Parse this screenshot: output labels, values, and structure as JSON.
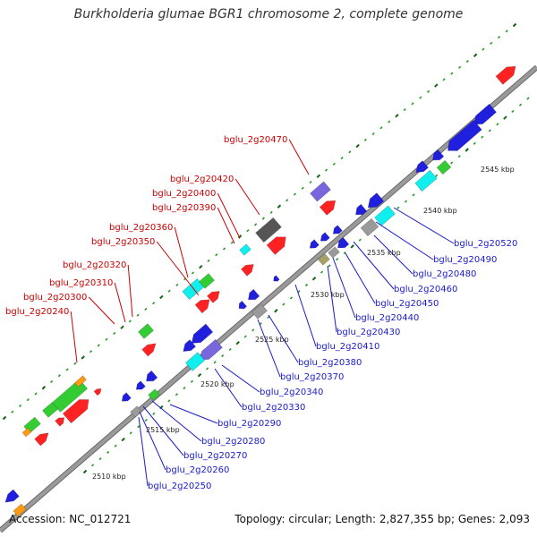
{
  "title": "Burkholderia glumae BGR1 chromosome 2, complete genome",
  "footer": {
    "accession": "Accession: NC_012721",
    "topology": "Topology: circular; Length: 2,827,355 bp; Genes: 2,093"
  },
  "colors": {
    "backbone": "#9a9a9a",
    "forward_label": "#cc0000",
    "reverse_label": "#1a1acc",
    "tick_minor": "#229922",
    "tick_major": "#116611",
    "gene_red": "#ff2222",
    "gene_blue": "#1f1fdd",
    "gene_green": "#33cc33",
    "gene_cyan": "#11eeee",
    "gene_grey": "#9a9a9a",
    "gene_purple": "#7766dd",
    "gene_darkgrey": "#555555",
    "gene_olive": "#aaa066",
    "gene_orange": "#ff9911"
  },
  "scale_labels": [
    "2510 kbp",
    "2515 kbp",
    "2520 kbp",
    "2525 kbp",
    "2530 kbp",
    "2535 kbp",
    "2540 kbp",
    "2545 kbp"
  ],
  "forward_labels": [
    "bglu_2g20470",
    "bglu_2g20420",
    "bglu_2g20400",
    "bglu_2g20390",
    "bglu_2g20360",
    "bglu_2g20350",
    "bglu_2g20320",
    "bglu_2g20310",
    "bglu_2g20300",
    "bglu_2g20240"
  ],
  "reverse_labels": [
    "bglu_2g20520",
    "bglu_2g20490",
    "bglu_2g20480",
    "bglu_2g20460",
    "bglu_2g20450",
    "bglu_2g20440",
    "bglu_2g20430",
    "bglu_2g20410",
    "bglu_2g20380",
    "bglu_2g20370",
    "bglu_2g20340",
    "bglu_2g20330",
    "bglu_2g20290",
    "bglu_2g20280",
    "bglu_2g20270",
    "bglu_2g20260",
    "bglu_2g20250"
  ]
}
